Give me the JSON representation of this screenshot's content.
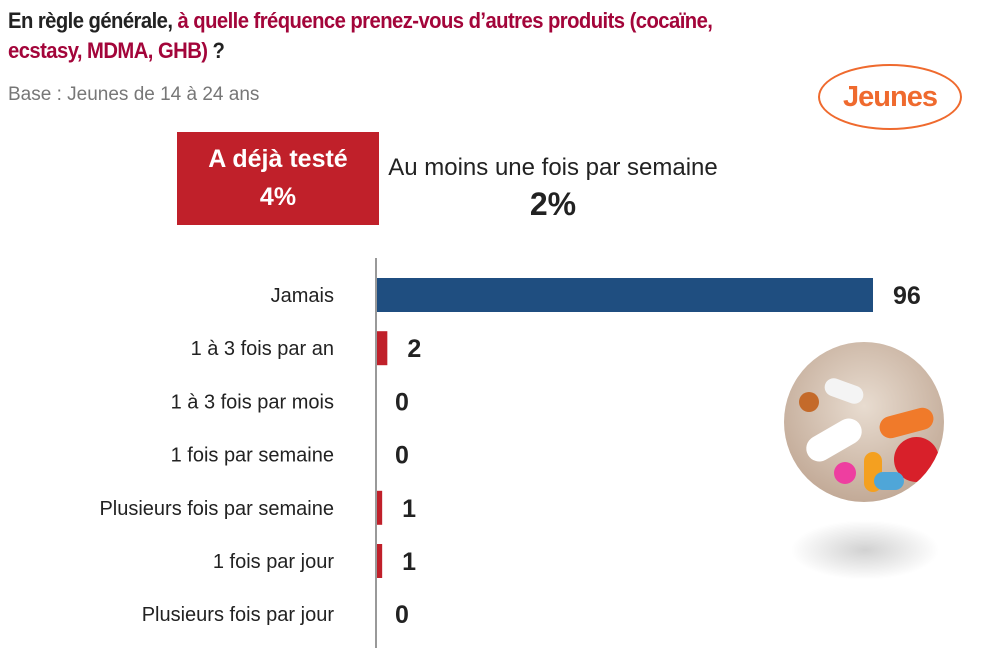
{
  "header": {
    "title_prefix": "En règle générale, ",
    "title_highlight": "à quelle fréquence prenez-vous d’autres produits (cocaïne, ecstasy, MDMA, GHB)",
    "title_suffix": " ?",
    "base": "Base : Jeunes de 14 à 24 ans",
    "logo": "Jeunes"
  },
  "summary": {
    "tested_label": "A déjà testé",
    "tested_value": "4%",
    "weekly_label": "Au moins une fois par semaine",
    "weekly_value": "2%"
  },
  "colors": {
    "primary_bar": "#1f4e80",
    "accent_bar": "#c0202a",
    "title_highlight": "#a3053a",
    "logo": "#ef6a2e"
  },
  "chart_data": {
    "type": "bar",
    "orientation": "horizontal",
    "categories": [
      "Jamais",
      "1 à 3 fois par an",
      "1 à 3 fois par mois",
      "1 fois par semaine",
      "Plusieurs fois par semaine",
      "1 fois par jour",
      "Plusieurs fois par jour"
    ],
    "values": [
      96,
      2,
      0,
      0,
      1,
      1,
      0
    ],
    "bar_colors": [
      "#1f4e80",
      "#c0202a",
      "#c0202a",
      "#c0202a",
      "#c0202a",
      "#c0202a",
      "#c0202a"
    ],
    "xlim": [
      0,
      100
    ],
    "grid": false
  }
}
